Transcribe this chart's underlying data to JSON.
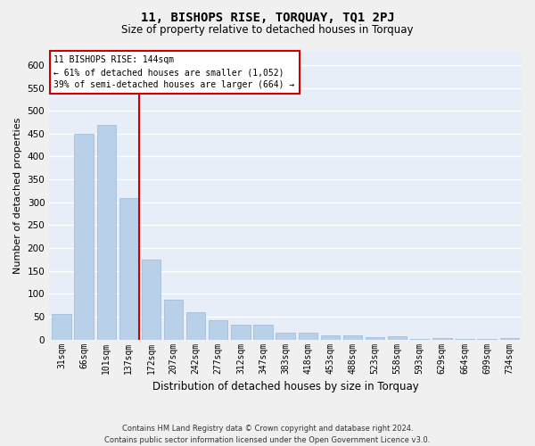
{
  "title": "11, BISHOPS RISE, TORQUAY, TQ1 2PJ",
  "subtitle": "Size of property relative to detached houses in Torquay",
  "xlabel": "Distribution of detached houses by size in Torquay",
  "ylabel": "Number of detached properties",
  "footer_line1": "Contains HM Land Registry data © Crown copyright and database right 2024.",
  "footer_line2": "Contains public sector information licensed under the Open Government Licence v3.0.",
  "categories": [
    "31sqm",
    "66sqm",
    "101sqm",
    "137sqm",
    "172sqm",
    "207sqm",
    "242sqm",
    "277sqm",
    "312sqm",
    "347sqm",
    "383sqm",
    "418sqm",
    "453sqm",
    "488sqm",
    "523sqm",
    "558sqm",
    "593sqm",
    "629sqm",
    "664sqm",
    "699sqm",
    "734sqm"
  ],
  "values": [
    55,
    450,
    470,
    310,
    175,
    88,
    60,
    42,
    32,
    33,
    14,
    14,
    10,
    10,
    6,
    8,
    1,
    4,
    1,
    1,
    4
  ],
  "bar_color": "#b8d0e8",
  "bar_edge_color": "#99b8d4",
  "fig_background_color": "#f0f0f0",
  "plot_background_color": "#e8eef7",
  "grid_color": "#ffffff",
  "annotation_text_line1": "11 BISHOPS RISE: 144sqm",
  "annotation_text_line2": "← 61% of detached houses are smaller (1,052)",
  "annotation_text_line3": "39% of semi-detached houses are larger (664) →",
  "annotation_box_facecolor": "#ffffff",
  "annotation_box_edgecolor": "#cc0000",
  "red_line_color": "#cc0000",
  "ylim": [
    0,
    630
  ],
  "yticks": [
    0,
    50,
    100,
    150,
    200,
    250,
    300,
    350,
    400,
    450,
    500,
    550,
    600
  ]
}
